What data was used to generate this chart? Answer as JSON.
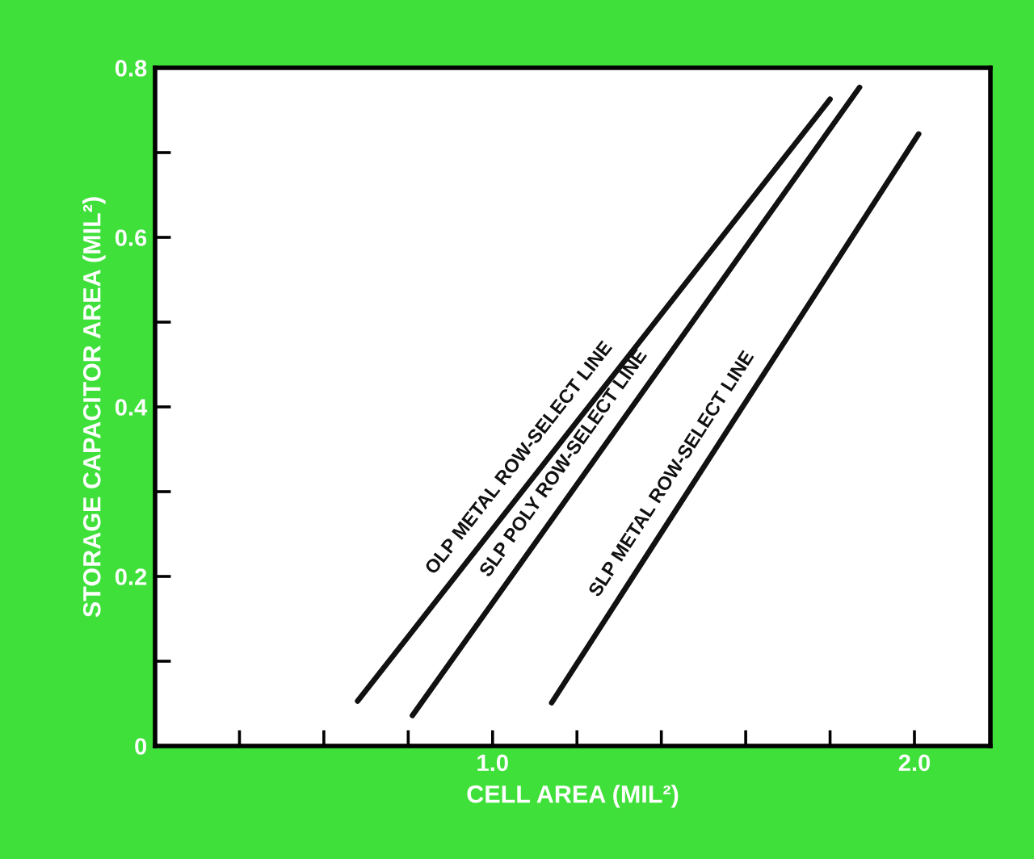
{
  "chart_data": {
    "type": "line",
    "xlabel": "CELL AREA (MIL²)",
    "ylabel": "STORAGE CAPACITOR AREA (MIL²)",
    "series": [
      {
        "x": [
          0.68,
          1.8
        ],
        "values": [
          0.053,
          0.763
        ],
        "color": "#111111"
      },
      {
        "x": [
          0.81,
          1.87
        ],
        "values": [
          0.036,
          0.777
        ],
        "color": "#111111"
      },
      {
        "x": [
          1.14,
          2.01
        ],
        "values": [
          0.051,
          0.722
        ],
        "color": "#111111"
      }
    ],
    "annotations": [
      "OLP METAL ROW-SELECT LINE",
      "SLP POLY ROW-SELECT LINE",
      "SLP METAL ROW-SELECT LINE"
    ],
    "xlim": [
      0.2,
      2.18
    ],
    "ylim": [
      0,
      0.8
    ],
    "xticks": [
      {
        "value": 0.4,
        "label": null
      },
      {
        "value": 0.6,
        "label": null
      },
      {
        "value": 0.8,
        "label": null
      },
      {
        "value": 1.0,
        "label": "1.0"
      },
      {
        "value": 1.2,
        "label": null
      },
      {
        "value": 1.4,
        "label": null
      },
      {
        "value": 1.6,
        "label": null
      },
      {
        "value": 1.8,
        "label": null
      },
      {
        "value": 2.0,
        "label": "2.0"
      }
    ],
    "yticks": [
      0,
      {
        "value": 0.1,
        "label": null
      },
      {
        "value": 0.2,
        "label": "0.2"
      },
      {
        "value": 0.3,
        "label": null
      },
      {
        "value": 0.4,
        "label": "0.4"
      },
      {
        "value": 0.5,
        "label": null
      },
      {
        "value": 0.6,
        "label": "0.6"
      },
      {
        "value": 0.7,
        "label": null
      },
      {
        "value": 0.8,
        "label": "0.8"
      }
    ],
    "grid": false,
    "legend": false,
    "marker": "none",
    "line_style": "solid"
  }
}
